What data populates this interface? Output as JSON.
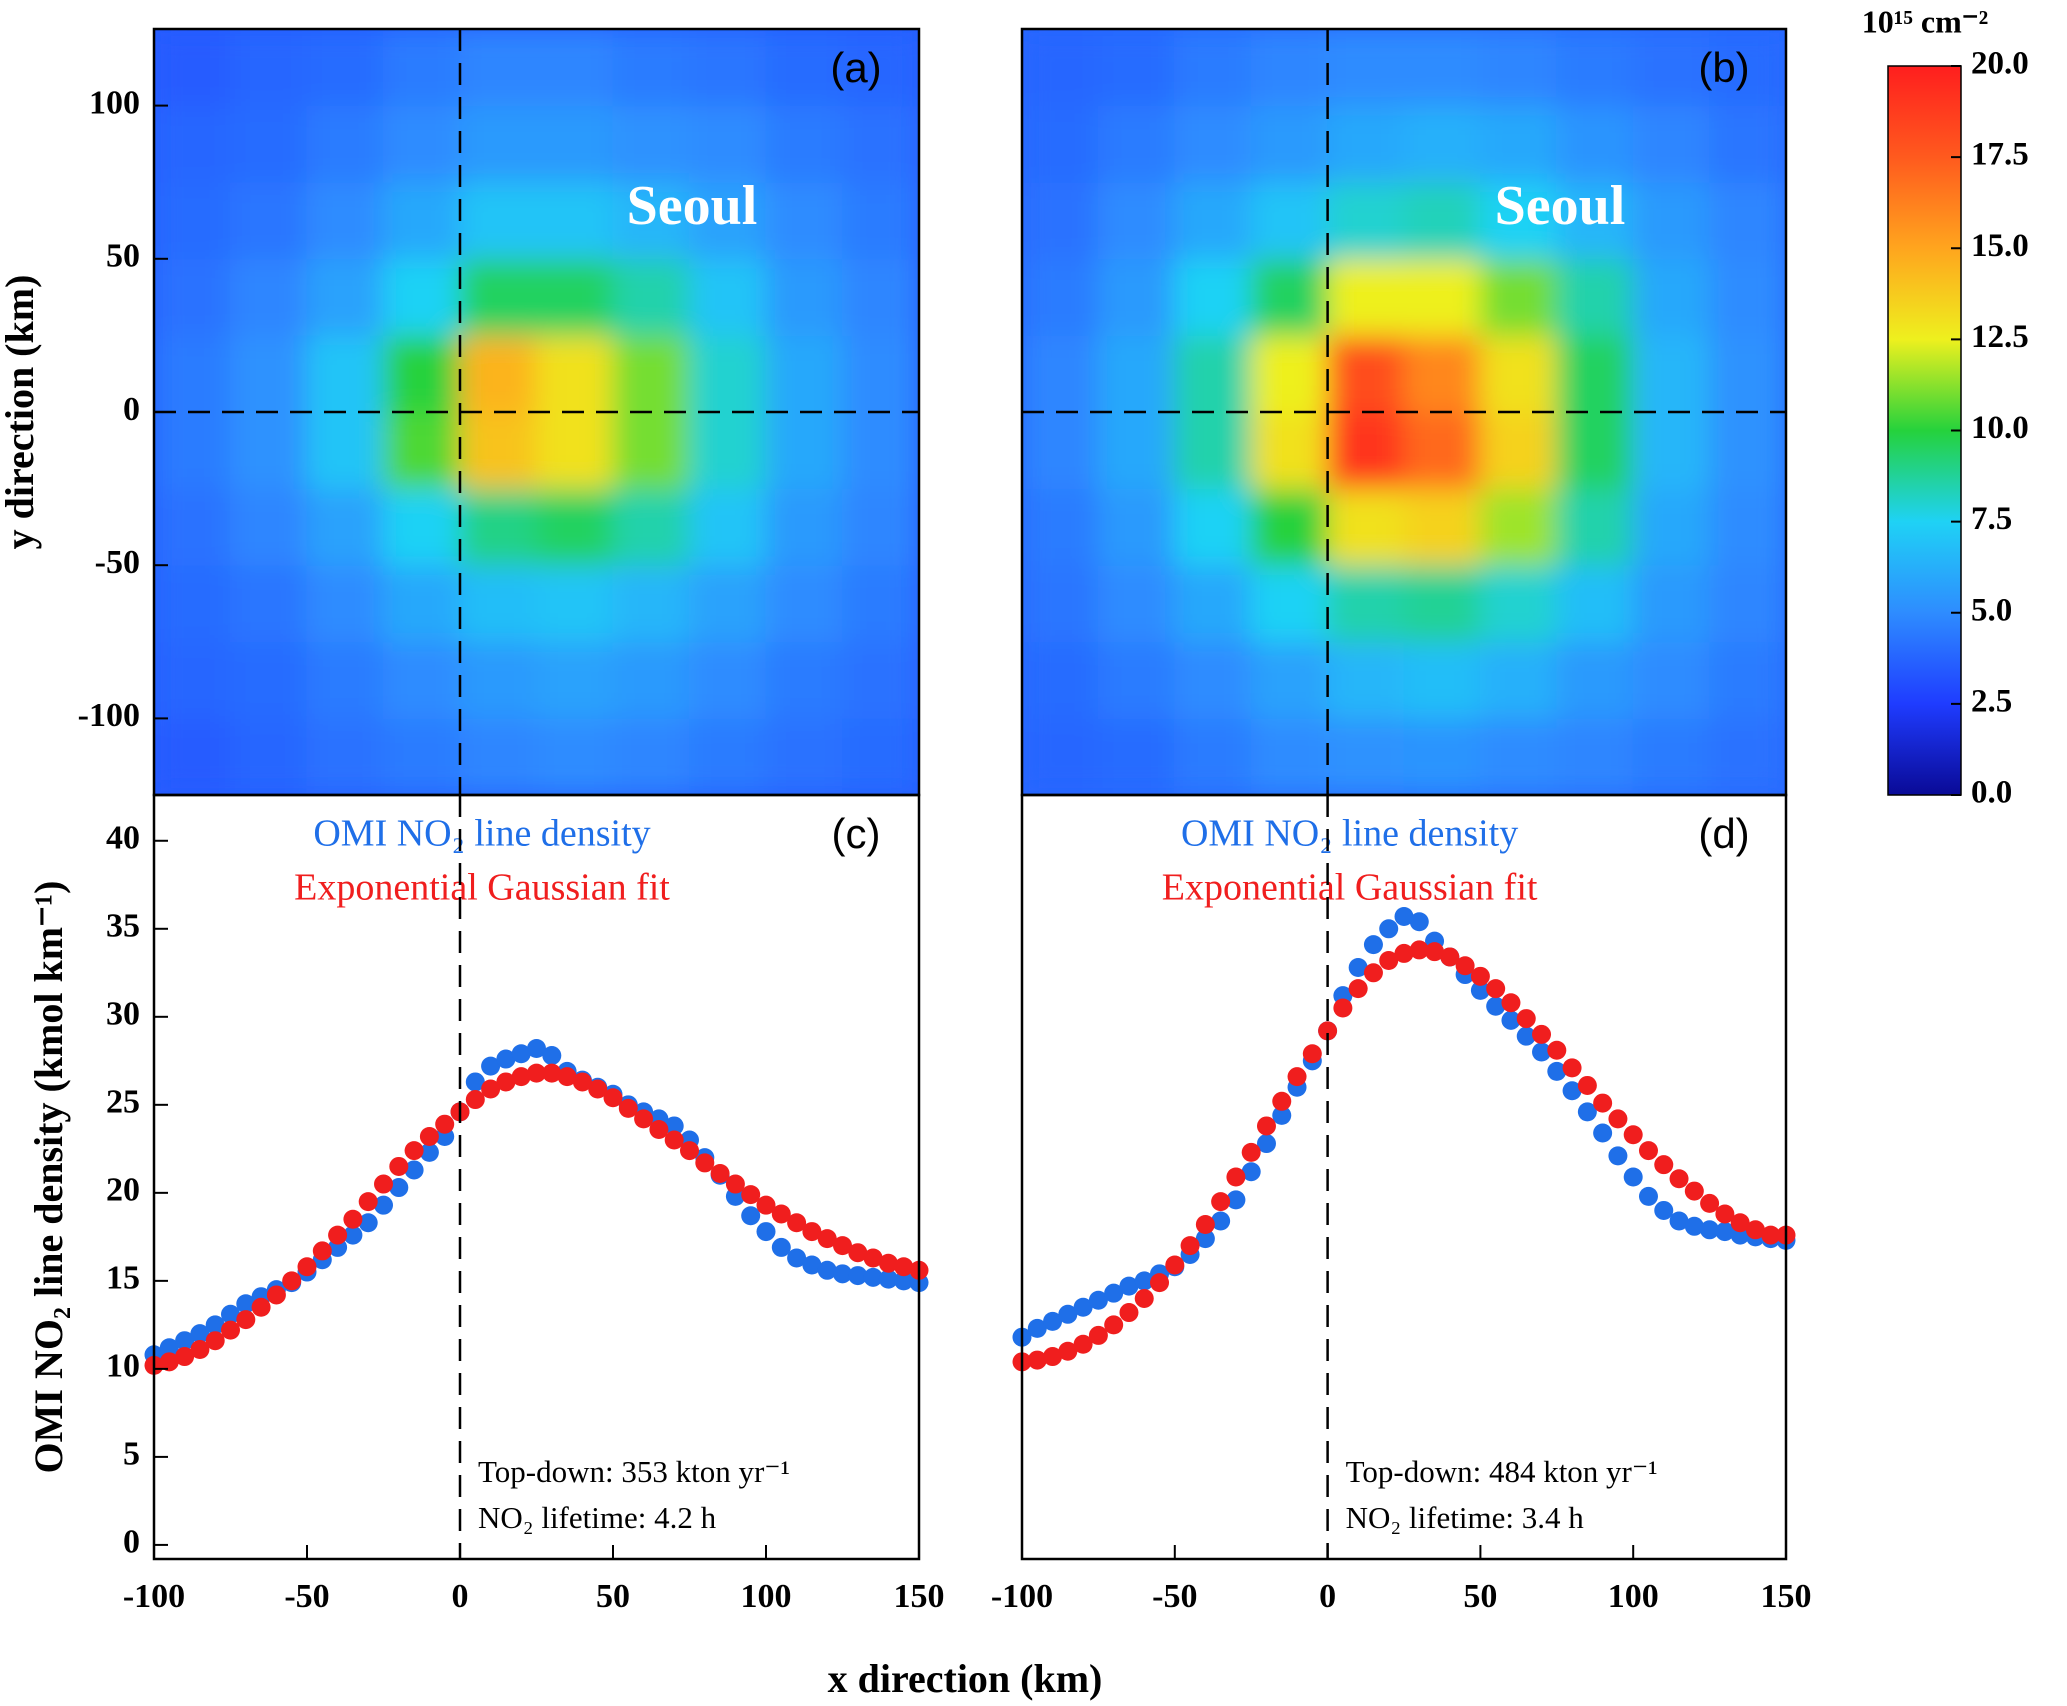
{
  "chart_data": [
    {
      "type": "heatmap",
      "label": "(a)",
      "annotation": "Seoul",
      "ylabel": "y direction (km)",
      "xlim": [
        -100,
        150
      ],
      "ylim": [
        -125,
        125
      ],
      "yticks": [
        -100,
        -50,
        0,
        50,
        100
      ],
      "vlines": [
        0
      ],
      "hlines": [
        0
      ],
      "xbins": [
        -100,
        -75,
        -50,
        -25,
        0,
        25,
        50,
        75,
        100,
        125,
        150
      ],
      "ybins": [
        -125,
        -100,
        -75,
        -50,
        -25,
        0,
        25,
        50,
        75,
        100,
        125
      ],
      "values": [
        [
          3.5,
          3.8,
          4.2,
          4.5,
          4.8,
          5,
          4.8,
          4.5,
          4.2,
          4
        ],
        [
          3.8,
          4,
          4.5,
          5,
          5.5,
          5.8,
          5.5,
          5,
          4.5,
          4.2
        ],
        [
          4,
          4.3,
          5,
          6,
          6.8,
          7,
          6.5,
          5.8,
          5,
          4.5
        ],
        [
          4.2,
          4.8,
          5.8,
          7.5,
          9,
          9.5,
          8.5,
          7,
          5.5,
          4.8
        ],
        [
          4.5,
          5.2,
          7,
          10.5,
          14,
          13,
          11,
          8,
          6,
          5
        ],
        [
          4.5,
          5.2,
          7,
          10,
          14.5,
          13,
          11,
          8,
          6,
          5
        ],
        [
          4.2,
          4.8,
          5.8,
          7.5,
          9.5,
          9.5,
          8.5,
          7,
          5.5,
          4.8
        ],
        [
          4,
          4.3,
          5,
          6,
          7,
          7,
          6.5,
          5.8,
          5,
          4.5
        ],
        [
          3.8,
          4,
          4.5,
          5,
          5.5,
          5.5,
          5.2,
          5,
          4.5,
          4.2
        ],
        [
          3.5,
          3.8,
          4,
          4.5,
          4.8,
          4.8,
          4.5,
          4.3,
          4,
          3.8
        ]
      ]
    },
    {
      "type": "heatmap",
      "label": "(b)",
      "annotation": "Seoul",
      "xlim": [
        -100,
        150
      ],
      "ylim": [
        -125,
        125
      ],
      "vlines": [
        0
      ],
      "hlines": [
        0
      ],
      "xbins": [
        -100,
        -75,
        -50,
        -25,
        0,
        25,
        50,
        75,
        100,
        125,
        150
      ],
      "ybins": [
        -125,
        -100,
        -75,
        -50,
        -25,
        0,
        25,
        50,
        75,
        100,
        125
      ],
      "values": [
        [
          3.8,
          4,
          4.5,
          5,
          5.2,
          5.3,
          5,
          4.8,
          4.5,
          4.2
        ],
        [
          4,
          4.5,
          5,
          5.8,
          6.5,
          6.8,
          6.3,
          5.5,
          5,
          4.5
        ],
        [
          4.3,
          5,
          6,
          7.5,
          8.5,
          8.8,
          8,
          6.8,
          5.5,
          4.8
        ],
        [
          4.5,
          5.5,
          7.5,
          10,
          13,
          13.5,
          11.5,
          8.5,
          6,
          5
        ],
        [
          4.8,
          6,
          8.5,
          13,
          19,
          17,
          13.5,
          9.5,
          6.5,
          5.2
        ],
        [
          4.8,
          6,
          8.5,
          12.5,
          18,
          16,
          13,
          9.5,
          6.5,
          5.2
        ],
        [
          4.5,
          5.5,
          7.5,
          9.5,
          12.5,
          12.5,
          11,
          8.5,
          6,
          5
        ],
        [
          4.2,
          5,
          6,
          7,
          8,
          8.3,
          7.5,
          6.5,
          5.5,
          4.8
        ],
        [
          4,
          4.5,
          5,
          5.5,
          6,
          6.3,
          6,
          5.3,
          4.8,
          4.3
        ],
        [
          3.8,
          4,
          4.5,
          4.8,
          5,
          5,
          4.8,
          4.5,
          4.2,
          4
        ]
      ]
    },
    {
      "type": "scatter",
      "label": "(c)",
      "ylabel": "OMI NO₂ line density (kmol km⁻¹)",
      "xlim": [
        -100,
        150
      ],
      "ylim": [
        -0.8,
        42.6
      ],
      "xticks": [
        -100,
        -50,
        0,
        50,
        100,
        150
      ],
      "yticks": [
        0,
        5,
        10,
        15,
        20,
        25,
        30,
        35,
        40
      ],
      "vlines": [
        0
      ],
      "annotations": [
        "Top-down: 353 kton yr⁻¹",
        "NO₂ lifetime: 4.2 h"
      ],
      "x": [
        -100,
        -95,
        -90,
        -85,
        -80,
        -75,
        -70,
        -65,
        -60,
        -55,
        -50,
        -45,
        -40,
        -35,
        -30,
        -25,
        -20,
        -15,
        -10,
        -5,
        0,
        5,
        10,
        15,
        20,
        25,
        30,
        35,
        40,
        45,
        50,
        55,
        60,
        65,
        70,
        75,
        80,
        85,
        90,
        95,
        100,
        105,
        110,
        115,
        120,
        125,
        130,
        135,
        140,
        145,
        150
      ],
      "series": [
        {
          "name": "OMI NO₂ line density",
          "color": "#1f6fe8",
          "values": [
            10.8,
            11.2,
            11.6,
            12.0,
            12.5,
            13.1,
            13.7,
            14.1,
            14.5,
            14.9,
            15.5,
            16.2,
            16.9,
            17.6,
            18.3,
            19.3,
            20.3,
            21.3,
            22.3,
            23.2,
            24.6,
            26.3,
            27.2,
            27.6,
            27.9,
            28.2,
            27.8,
            26.9,
            26.4,
            26.0,
            25.6,
            25.0,
            24.6,
            24.2,
            23.8,
            23.0,
            22.0,
            21.0,
            19.8,
            18.7,
            17.8,
            16.9,
            16.3,
            15.9,
            15.6,
            15.4,
            15.3,
            15.2,
            15.1,
            15.0,
            14.9
          ]
        },
        {
          "name": "Exponential Gaussian fit",
          "color": "#f01e1e",
          "values": [
            10.2,
            10.4,
            10.7,
            11.1,
            11.6,
            12.2,
            12.8,
            13.5,
            14.2,
            15.0,
            15.8,
            16.7,
            17.6,
            18.5,
            19.5,
            20.5,
            21.5,
            22.4,
            23.2,
            23.9,
            24.6,
            25.3,
            25.9,
            26.3,
            26.6,
            26.8,
            26.8,
            26.6,
            26.3,
            25.9,
            25.4,
            24.8,
            24.2,
            23.6,
            23.0,
            22.4,
            21.7,
            21.1,
            20.5,
            19.9,
            19.3,
            18.8,
            18.3,
            17.8,
            17.4,
            17.0,
            16.6,
            16.3,
            16.0,
            15.8,
            15.6
          ]
        }
      ]
    },
    {
      "type": "scatter",
      "label": "(d)",
      "xlim": [
        -100,
        150
      ],
      "ylim": [
        -0.8,
        42.6
      ],
      "xticks": [
        -100,
        -50,
        0,
        50,
        100,
        150
      ],
      "vlines": [
        0
      ],
      "annotations": [
        "Top-down: 484 kton yr⁻¹",
        "NO₂ lifetime: 3.4 h"
      ],
      "x": [
        -100,
        -95,
        -90,
        -85,
        -80,
        -75,
        -70,
        -65,
        -60,
        -55,
        -50,
        -45,
        -40,
        -35,
        -30,
        -25,
        -20,
        -15,
        -10,
        -5,
        0,
        5,
        10,
        15,
        20,
        25,
        30,
        35,
        40,
        45,
        50,
        55,
        60,
        65,
        70,
        75,
        80,
        85,
        90,
        95,
        100,
        105,
        110,
        115,
        120,
        125,
        130,
        135,
        140,
        145,
        150
      ],
      "series": [
        {
          "name": "OMI NO₂ line density",
          "color": "#1f6fe8",
          "values": [
            11.8,
            12.3,
            12.7,
            13.1,
            13.5,
            13.9,
            14.3,
            14.7,
            15.0,
            15.4,
            15.8,
            16.5,
            17.4,
            18.4,
            19.6,
            21.2,
            22.8,
            24.4,
            26.0,
            27.5,
            29.2,
            31.2,
            32.8,
            34.1,
            35.0,
            35.7,
            35.4,
            34.3,
            33.4,
            32.4,
            31.5,
            30.6,
            29.8,
            28.9,
            28.0,
            26.9,
            25.8,
            24.6,
            23.4,
            22.1,
            20.9,
            19.8,
            19.0,
            18.4,
            18.1,
            17.9,
            17.8,
            17.6,
            17.5,
            17.4,
            17.3
          ]
        },
        {
          "name": "Exponential Gaussian fit",
          "color": "#f01e1e",
          "values": [
            10.4,
            10.5,
            10.7,
            11.0,
            11.4,
            11.9,
            12.5,
            13.2,
            14.0,
            14.9,
            15.9,
            17.0,
            18.2,
            19.5,
            20.9,
            22.3,
            23.8,
            25.2,
            26.6,
            27.9,
            29.2,
            30.5,
            31.6,
            32.5,
            33.2,
            33.6,
            33.8,
            33.7,
            33.4,
            32.9,
            32.3,
            31.6,
            30.8,
            29.9,
            29.0,
            28.1,
            27.1,
            26.1,
            25.1,
            24.2,
            23.3,
            22.4,
            21.6,
            20.8,
            20.1,
            19.4,
            18.8,
            18.3,
            17.9,
            17.6,
            17.6
          ]
        }
      ]
    }
  ],
  "xlabel": "x direction (km)",
  "colorbar": {
    "label": "10¹⁵ cm⁻²",
    "lim": [
      0,
      20
    ],
    "ticks": [
      {
        "value": 0,
        "label": "0.0"
      },
      2.5,
      {
        "value": 5,
        "label": "5.0"
      },
      7.5,
      {
        "value": 10,
        "label": "10.0"
      },
      12.5,
      {
        "value": 15,
        "label": "15.0"
      },
      17.5,
      {
        "value": 20,
        "label": "20.0"
      }
    ],
    "colors": [
      "#0a0a96",
      "#1f3cff",
      "#2e8cff",
      "#1fd2f5",
      "#25d23c",
      "#eef01e",
      "#ffa51e",
      "#ff5a1e",
      "#ff1e1e"
    ]
  }
}
